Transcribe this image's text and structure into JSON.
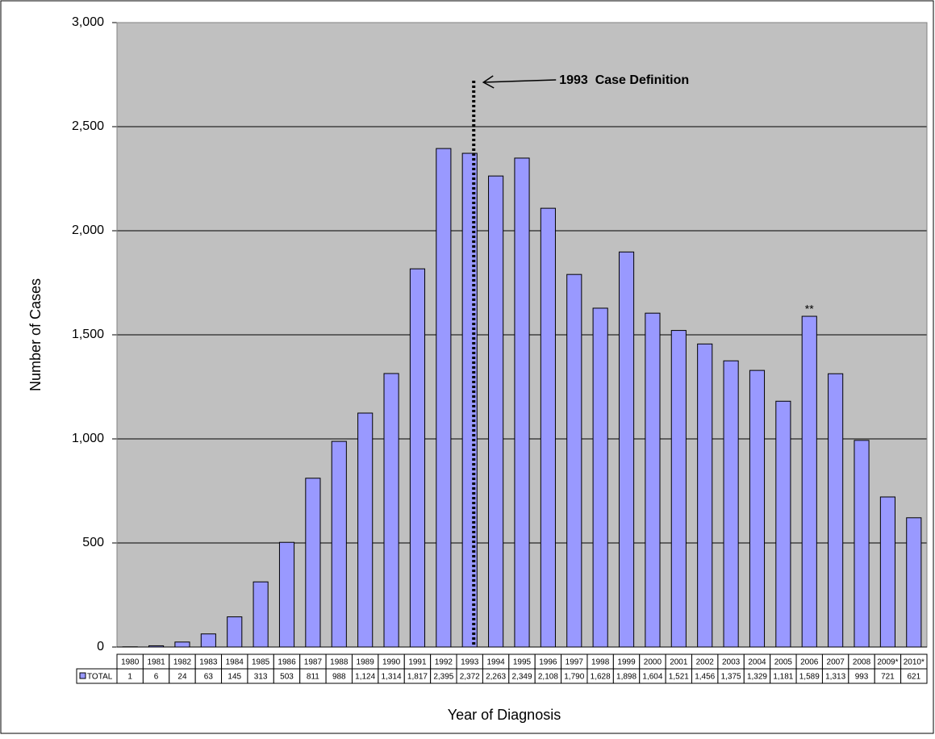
{
  "chart_data": {
    "type": "bar",
    "x_label": "Year of Diagnosis",
    "y_label": "Number of Cases",
    "categories": [
      "1980",
      "1981",
      "1982",
      "1983",
      "1984",
      "1985",
      "1986",
      "1987",
      "1988",
      "1989",
      "1990",
      "1991",
      "1992",
      "1993",
      "1994",
      "1995",
      "1996",
      "1997",
      "1998",
      "1999",
      "2000",
      "2001",
      "2002",
      "2003",
      "2004",
      "2005",
      "2006",
      "2007",
      "2008",
      "2009*",
      "2010*"
    ],
    "series": [
      {
        "name": "TOTAL",
        "color": "#9999ff",
        "values": [
          1,
          6,
          24,
          63,
          145,
          313,
          503,
          811,
          988,
          1124,
          1314,
          1817,
          2395,
          2372,
          2263,
          2349,
          2108,
          1790,
          1628,
          1898,
          1604,
          1521,
          1456,
          1375,
          1329,
          1181,
          1589,
          1313,
          993,
          721,
          621
        ],
        "value_labels": [
          "1",
          "6",
          "24",
          "63",
          "145",
          "313",
          "503",
          "811",
          "988",
          "1,124",
          "1,314",
          "1,817",
          "2,395",
          "2,372",
          "2,263",
          "2,349",
          "2,108",
          "1,790",
          "1,628",
          "1,898",
          "1,604",
          "1,521",
          "1,456",
          "1,375",
          "1,329",
          "1,181",
          "1,589",
          "1,313",
          "993",
          "721",
          "621"
        ]
      }
    ],
    "ylim": [
      0,
      3000
    ],
    "yticks": [
      0,
      500,
      {
        "value": 1000,
        "label": "1,000"
      },
      {
        "value": 1500,
        "label": "1,500"
      },
      {
        "value": 2000,
        "label": "2,000"
      },
      {
        "value": 2500,
        "label": "2,500"
      },
      {
        "value": 3000,
        "label": "3,000"
      }
    ],
    "grid": true,
    "annotations": [
      {
        "text": "1993  Case Definition",
        "category": "1993"
      },
      {
        "text": "**",
        "category": "2006"
      }
    ]
  }
}
